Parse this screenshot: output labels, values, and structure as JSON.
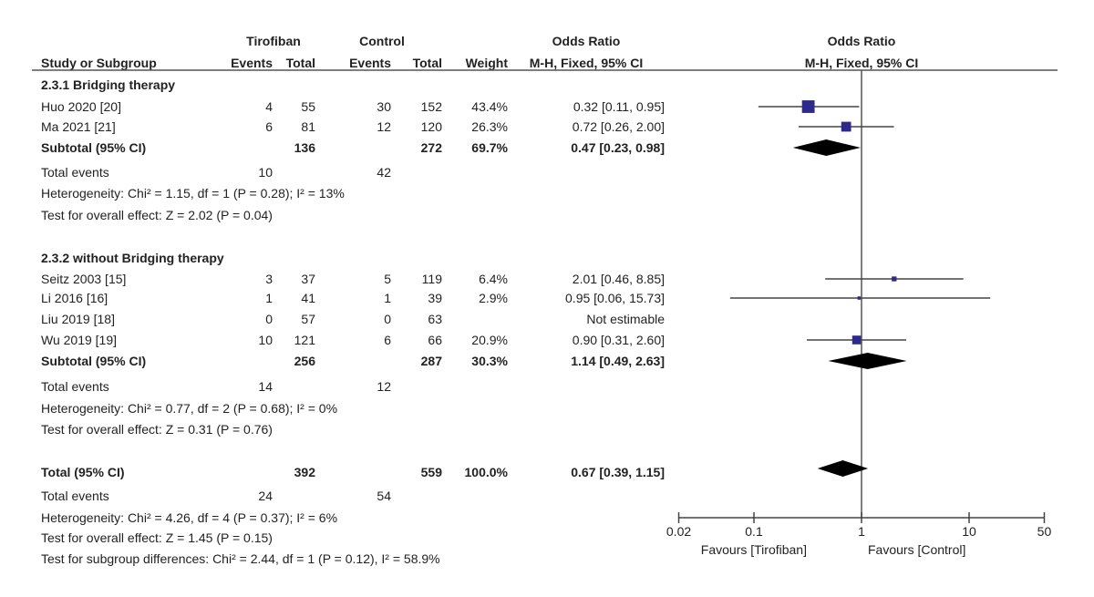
{
  "chart_data": {
    "type": "forest",
    "headers": {
      "group1": "Tirofiban",
      "group2": "Control",
      "or_col": "Odds Ratio",
      "or_sub": "M-H, Fixed, 95% CI",
      "plot_title": "Odds Ratio",
      "plot_sub": "M-H, Fixed, 95% CI",
      "study": "Study or Subgroup",
      "events1": "Events",
      "total1": "Total",
      "events2": "Events",
      "total2": "Total",
      "weight": "Weight"
    },
    "subgroups": [
      {
        "title": "2.3.1 Bridging therapy",
        "studies": [
          {
            "name": "Huo 2020 [20]",
            "e1": "4",
            "t1": "55",
            "e2": "30",
            "t2": "152",
            "weight": "43.4%",
            "ci_text": "0.32 [0.11, 0.95]",
            "or": 0.32,
            "lo": 0.11,
            "hi": 0.95,
            "w": 43.4
          },
          {
            "name": "Ma 2021 [21]",
            "e1": "6",
            "t1": "81",
            "e2": "12",
            "t2": "120",
            "weight": "26.3%",
            "ci_text": "0.72 [0.26, 2.00]",
            "or": 0.72,
            "lo": 0.26,
            "hi": 2.0,
            "w": 26.3
          }
        ],
        "subtotal": {
          "label": "Subtotal (95% CI)",
          "t1": "136",
          "t2": "272",
          "weight": "69.7%",
          "ci_text": "0.47 [0.23, 0.98]",
          "or": 0.47,
          "lo": 0.23,
          "hi": 0.98
        },
        "events": {
          "label": "Total events",
          "e1": "10",
          "e2": "42"
        },
        "heterogeneity": "Heterogeneity: Chi² = 1.15, df = 1 (P = 0.28); I² = 13%",
        "overall": "Test for overall effect: Z = 2.02 (P = 0.04)"
      },
      {
        "title": "2.3.2 without Bridging therapy",
        "studies": [
          {
            "name": "Seitz 2003 [15]",
            "e1": "3",
            "t1": "37",
            "e2": "5",
            "t2": "119",
            "weight": "6.4%",
            "ci_text": "2.01 [0.46, 8.85]",
            "or": 2.01,
            "lo": 0.46,
            "hi": 8.85,
            "w": 6.4
          },
          {
            "name": "Li 2016 [16]",
            "e1": "1",
            "t1": "41",
            "e2": "1",
            "t2": "39",
            "weight": "2.9%",
            "ci_text": "0.95 [0.06, 15.73]",
            "or": 0.95,
            "lo": 0.06,
            "hi": 15.73,
            "w": 2.9
          },
          {
            "name": "Liu 2019 [18]",
            "e1": "0",
            "t1": "57",
            "e2": "0",
            "t2": "63",
            "weight": "",
            "ci_text": "Not estimable",
            "or": null,
            "lo": null,
            "hi": null,
            "w": 0
          },
          {
            "name": "Wu 2019 [19]",
            "e1": "10",
            "t1": "121",
            "e2": "6",
            "t2": "66",
            "weight": "20.9%",
            "ci_text": "0.90 [0.31, 2.60]",
            "or": 0.9,
            "lo": 0.31,
            "hi": 2.6,
            "w": 20.9
          }
        ],
        "subtotal": {
          "label": "Subtotal (95% CI)",
          "t1": "256",
          "t2": "287",
          "weight": "30.3%",
          "ci_text": "1.14 [0.49, 2.63]",
          "or": 1.14,
          "lo": 0.49,
          "hi": 2.63
        },
        "events": {
          "label": "Total events",
          "e1": "14",
          "e2": "12"
        },
        "heterogeneity": "Heterogeneity: Chi² = 0.77, df = 2 (P = 0.68); I² = 0%",
        "overall": "Test for overall effect: Z = 0.31 (P = 0.76)"
      }
    ],
    "total": {
      "label": "Total (95% CI)",
      "t1": "392",
      "t2": "559",
      "weight": "100.0%",
      "ci_text": "0.67 [0.39, 1.15]",
      "or": 0.67,
      "lo": 0.39,
      "hi": 1.15
    },
    "total_events": {
      "label": "Total events",
      "e1": "24",
      "e2": "54"
    },
    "total_heterogeneity": "Heterogeneity: Chi² = 4.26, df = 4 (P = 0.37); I² = 6%",
    "total_overall": "Test for overall effect: Z = 1.45 (P = 0.15)",
    "subgroup_diff": "Test for subgroup differences: Chi² = 2.44, df = 1 (P = 0.12), I² = 58.9%",
    "x_scale": "log",
    "xlim": [
      0.02,
      50
    ],
    "x_ticks": [
      "0.02",
      "0.1",
      "1",
      "10",
      "50"
    ],
    "x_tick_values": [
      0.02,
      0.1,
      1,
      10,
      50
    ],
    "favours_left": "Favours [Tirofiban]",
    "favours_right": "Favours [Control]",
    "colors": {
      "square": "#2e2a8c",
      "diamond": "#000000",
      "line": "#444444"
    }
  }
}
